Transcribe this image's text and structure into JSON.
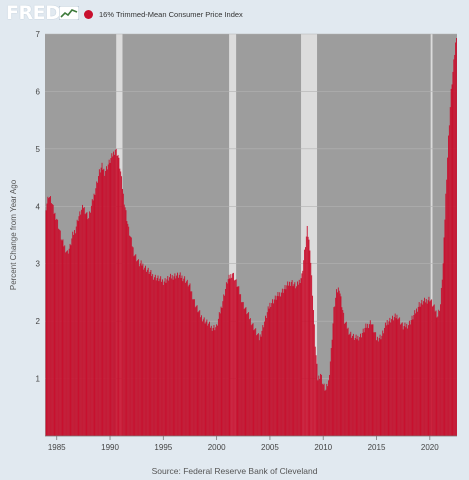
{
  "brand": {
    "logo_text": "FRED"
  },
  "legend": {
    "label": "16% Trimmed-Mean Consumer Price Index",
    "color": "#c8102e"
  },
  "source": "Source: Federal Reserve Bank of Cleveland",
  "chart_data": {
    "type": "bar",
    "title": "",
    "xlabel": "",
    "ylabel": "Percent Change from Year Ago",
    "y_ticks": [
      1,
      2,
      3,
      4,
      5,
      6,
      7
    ],
    "ylim": [
      0,
      7
    ],
    "xlim": [
      1983.9,
      2022.55
    ],
    "x_ticks": [
      "1985",
      "1990",
      "1995",
      "2000",
      "2005",
      "2010",
      "2015",
      "2020"
    ],
    "grid": true,
    "legend_position": "top-left",
    "colors": {
      "series": "#c8102e",
      "plot_bg": "#9d9d9d",
      "recession": "#dcdcdc"
    },
    "recessions": [
      [
        1990.58,
        1991.17
      ],
      [
        2001.17,
        2001.83
      ],
      [
        2007.92,
        2009.42
      ],
      [
        2020.08,
        2020.25
      ]
    ],
    "series": [
      {
        "name": "16% Trimmed-Mean Consumer Price Index",
        "x": [
          1984.0,
          1984.25,
          1984.5,
          1984.75,
          1985.0,
          1985.25,
          1985.5,
          1985.75,
          1986.0,
          1986.25,
          1986.5,
          1986.75,
          1987.0,
          1987.25,
          1987.5,
          1987.75,
          1988.0,
          1988.25,
          1988.5,
          1988.75,
          1989.0,
          1989.25,
          1989.5,
          1989.75,
          1990.0,
          1990.25,
          1990.5,
          1990.75,
          1991.0,
          1991.25,
          1991.5,
          1991.75,
          1992.0,
          1992.25,
          1992.5,
          1992.75,
          1993.0,
          1993.25,
          1993.5,
          1993.75,
          1994.0,
          1994.5,
          1995.0,
          1995.5,
          1996.0,
          1996.5,
          1997.0,
          1997.5,
          1998.0,
          1998.5,
          1999.0,
          1999.5,
          2000.0,
          2000.5,
          2001.0,
          2001.5,
          2002.0,
          2002.5,
          2003.0,
          2003.5,
          2004.0,
          2004.5,
          2005.0,
          2005.5,
          2006.0,
          2006.5,
          2007.0,
          2007.5,
          2008.0,
          2008.25,
          2008.5,
          2008.75,
          2009.0,
          2009.25,
          2009.5,
          2009.75,
          2010.0,
          2010.25,
          2010.5,
          2010.75,
          2011.0,
          2011.25,
          2011.5,
          2011.75,
          2012.0,
          2012.5,
          2013.0,
          2013.5,
          2014.0,
          2014.5,
          2015.0,
          2015.5,
          2016.0,
          2016.5,
          2017.0,
          2017.5,
          2018.0,
          2018.5,
          2019.0,
          2019.5,
          2020.0,
          2020.25,
          2020.5,
          2020.75,
          2021.0,
          2021.25,
          2021.5,
          2021.75,
          2022.0,
          2022.2,
          2022.4,
          2022.5
        ],
        "values": [
          4.0,
          4.2,
          4.1,
          3.9,
          3.8,
          3.6,
          3.4,
          3.3,
          3.2,
          3.3,
          3.5,
          3.6,
          3.8,
          3.9,
          4.0,
          3.9,
          3.8,
          4.0,
          4.2,
          4.4,
          4.6,
          4.7,
          4.6,
          4.7,
          4.8,
          4.9,
          5.0,
          4.9,
          4.6,
          4.2,
          3.9,
          3.6,
          3.4,
          3.2,
          3.1,
          3.0,
          3.0,
          2.95,
          2.9,
          2.85,
          2.8,
          2.75,
          2.7,
          2.75,
          2.8,
          2.8,
          2.75,
          2.6,
          2.3,
          2.1,
          2.0,
          1.9,
          1.9,
          2.3,
          2.7,
          2.85,
          2.6,
          2.3,
          2.1,
          1.9,
          1.7,
          2.0,
          2.3,
          2.4,
          2.5,
          2.6,
          2.7,
          2.6,
          2.8,
          3.2,
          3.6,
          3.3,
          2.5,
          1.6,
          1.0,
          1.1,
          0.9,
          0.8,
          0.95,
          1.5,
          2.2,
          2.5,
          2.6,
          2.3,
          2.0,
          1.8,
          1.7,
          1.75,
          1.9,
          2.0,
          1.7,
          1.75,
          2.0,
          2.05,
          2.1,
          1.9,
          1.95,
          2.1,
          2.3,
          2.35,
          2.4,
          2.3,
          2.2,
          2.1,
          2.3,
          3.0,
          4.2,
          5.2,
          6.0,
          6.4,
          6.8,
          7.0
        ]
      }
    ]
  }
}
